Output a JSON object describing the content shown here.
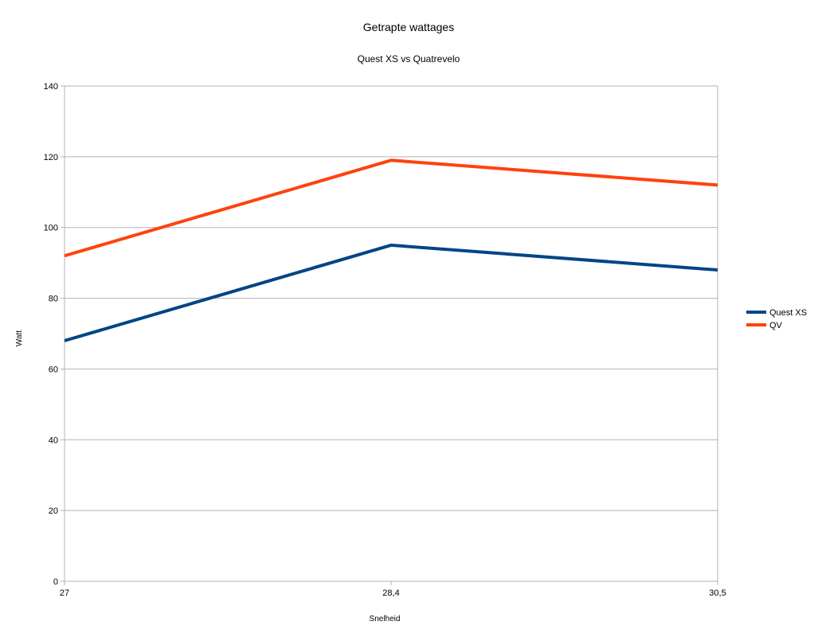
{
  "chart_data": {
    "type": "line",
    "title": "Getrapte wattages",
    "subtitle": "Quest XS vs Quatrevelo",
    "xlabel": "Snelheid",
    "ylabel": "Watt",
    "categories": [
      "27",
      "28,4",
      "30,5"
    ],
    "ylim": [
      0,
      140
    ],
    "yticks": [
      0,
      20,
      40,
      60,
      80,
      100,
      120,
      140
    ],
    "grid": true,
    "legend_position": "right",
    "series": [
      {
        "name": "Quest XS",
        "color": "#004586",
        "values": [
          68,
          95,
          88
        ]
      },
      {
        "name": "QV",
        "color": "#ff420e",
        "values": [
          92,
          119,
          112
        ]
      }
    ]
  }
}
